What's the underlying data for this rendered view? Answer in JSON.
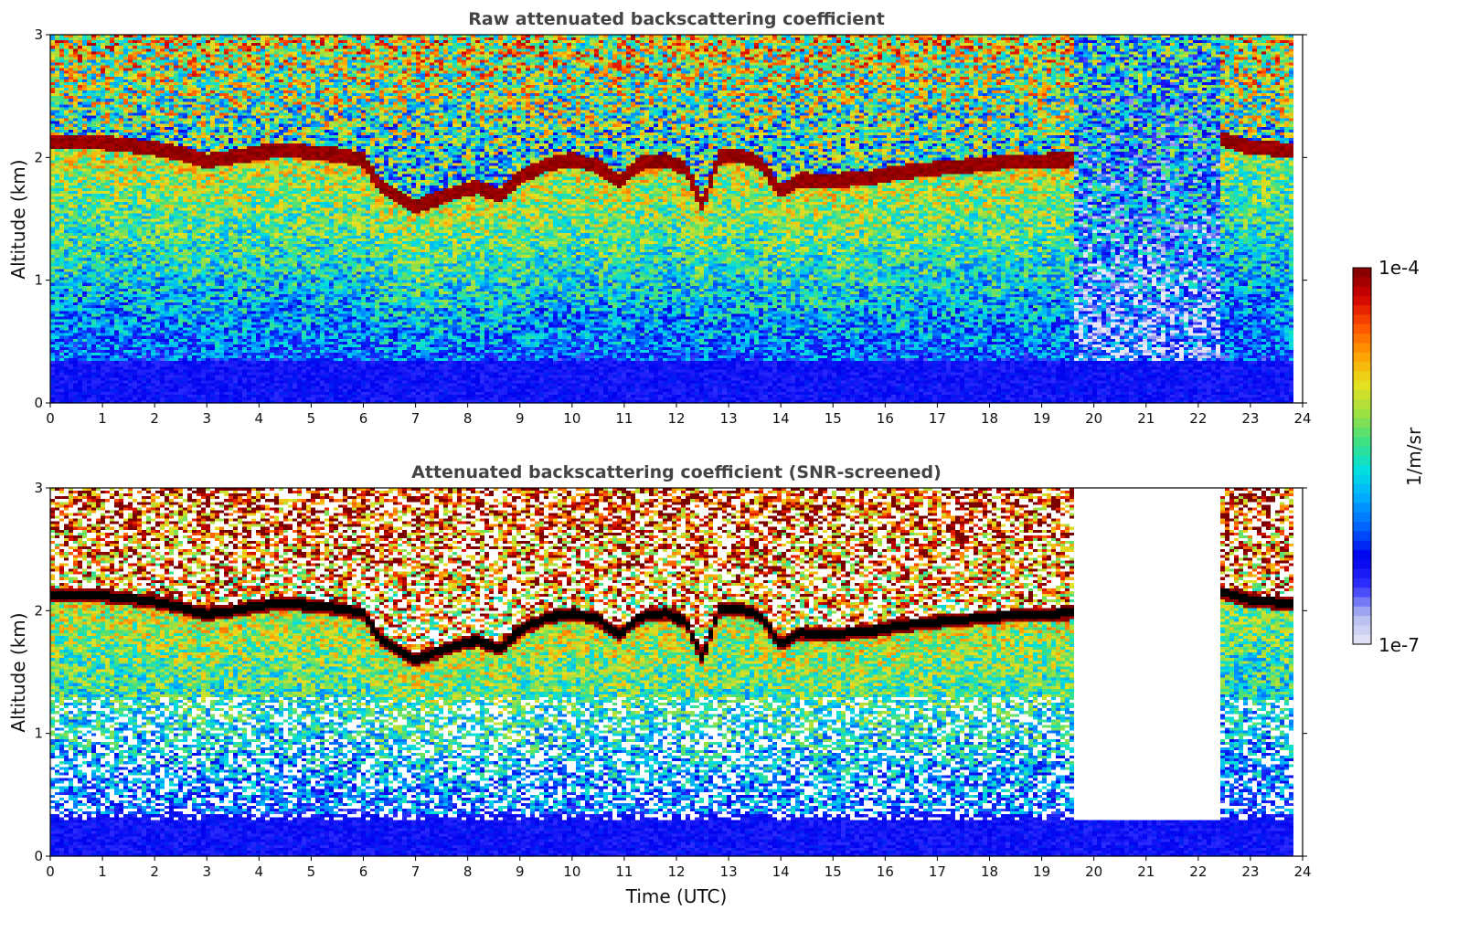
{
  "colors": {
    "background": "#ffffff",
    "title_text": "#444444",
    "colormap": [
      "#e8e8f8",
      "#b0b8ee",
      "#3030ff",
      "#0000ee",
      "#0060ff",
      "#00a8ff",
      "#00e0e0",
      "#40e080",
      "#a0e040",
      "#e8e020",
      "#ffa000",
      "#ff5000",
      "#d00000",
      "#7a0000"
    ],
    "screened_layer_peak": "#000000"
  },
  "chart_data": [
    {
      "type": "heatmap",
      "title": "Raw attenuated backscattering coefficient",
      "xlabel": "",
      "ylabel": "Altitude (km)",
      "xlim": [
        0,
        24
      ],
      "ylim": [
        0,
        3
      ],
      "xticks": [
        "0",
        "1",
        "2",
        "3",
        "4",
        "5",
        "6",
        "7",
        "8",
        "9",
        "10",
        "11",
        "12",
        "13",
        "14",
        "15",
        "16",
        "17",
        "18",
        "19",
        "20",
        "21",
        "22",
        "23",
        "24"
      ],
      "yticks": [
        "0",
        "1",
        "2",
        "3"
      ],
      "screened": false,
      "data_end_time": 23.8,
      "layer_gap": [
        19.6,
        22.4
      ],
      "layer_top_km": {
        "time": [
          0,
          0.5,
          1.0,
          1.5,
          2.0,
          2.5,
          3.0,
          3.5,
          4.0,
          4.5,
          5.0,
          5.5,
          6.0,
          6.3,
          6.6,
          7.0,
          7.4,
          7.8,
          8.2,
          8.6,
          9.0,
          9.5,
          10.0,
          10.5,
          10.9,
          11.3,
          11.8,
          12.2,
          12.5,
          12.8,
          13.2,
          13.6,
          14.0,
          14.4,
          14.8,
          15.3,
          15.8,
          16.3,
          16.8,
          17.3,
          17.8,
          18.3,
          18.8,
          19.5,
          22.4,
          23.0,
          23.8
        ],
        "altitude": [
          2.12,
          2.13,
          2.12,
          2.1,
          2.07,
          2.03,
          1.97,
          2.0,
          2.04,
          2.06,
          2.04,
          2.02,
          1.98,
          1.78,
          1.7,
          1.6,
          1.66,
          1.72,
          1.76,
          1.68,
          1.84,
          1.94,
          1.98,
          1.93,
          1.8,
          1.95,
          1.98,
          1.9,
          1.6,
          2.0,
          2.02,
          1.96,
          1.72,
          1.82,
          1.8,
          1.82,
          1.84,
          1.88,
          1.9,
          1.92,
          1.94,
          1.96,
          1.97,
          1.98,
          2.16,
          2.08,
          2.06
        ]
      }
    },
    {
      "type": "heatmap",
      "title": "Attenuated backscattering coefficient (SNR-screened)",
      "xlabel": "Time (UTC)",
      "ylabel": "Altitude (km)",
      "xlim": [
        0,
        24
      ],
      "ylim": [
        0,
        3
      ],
      "xticks": [
        "0",
        "1",
        "2",
        "3",
        "4",
        "5",
        "6",
        "7",
        "8",
        "9",
        "10",
        "11",
        "12",
        "13",
        "14",
        "15",
        "16",
        "17",
        "18",
        "19",
        "20",
        "21",
        "22",
        "23",
        "24"
      ],
      "yticks": [
        "0",
        "1",
        "2",
        "3"
      ],
      "screened": true,
      "data_end_time": 23.8
    }
  ],
  "colorbar": {
    "label": "1/m/sr",
    "max_label": "1e-4",
    "min_label": "1e-7",
    "scale": "log",
    "range": [
      1e-07,
      0.0001
    ]
  }
}
